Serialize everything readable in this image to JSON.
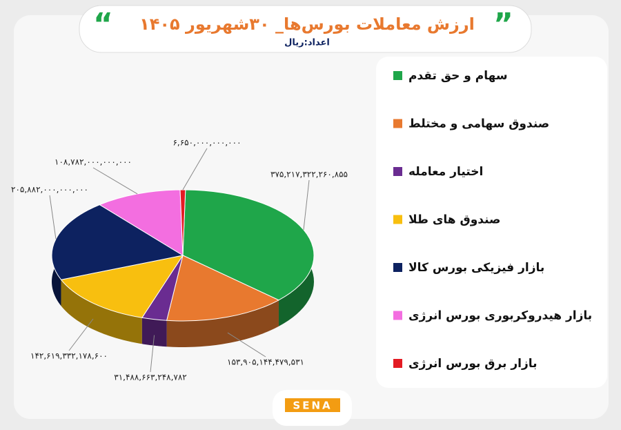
{
  "chart_data": {
    "type": "pie",
    "title": "ارزش معاملات بورس‌ها_ ۳۰شهریور ۱۴۰۵",
    "subtitle": "اعداد:ریال",
    "categories": [
      "سهام و حق تقدم",
      "صندوق سهامی و مختلط",
      "اختیار معامله",
      "صندوق های طلا",
      "بازار فیزیکی بورس کالا",
      "بازار هیدروکربوری بورس انرژی",
      "بازار برق بورس انرژی"
    ],
    "values": [
      375217322260855,
      153905144479531,
      31488663248782,
      142619332178600,
      205882000000000,
      108782000000000,
      6650000000000
    ],
    "value_labels": [
      "۳۷۵,۲۱۷,۳۲۲,۲۶۰,۸۵۵",
      "۱۵۳,۹۰۵,۱۴۴,۴۷۹,۵۳۱",
      "۳۱,۴۸۸,۶۶۳,۲۴۸,۷۸۲",
      "۱۴۲,۶۱۹,۳۳۲,۱۷۸,۶۰۰",
      "۲۰۵,۸۸۲,۰۰۰,۰۰۰,۰۰۰",
      "۱۰۸,۷۸۲,۰۰۰,۰۰۰,۰۰۰",
      "۶,۶۵۰,۰۰۰,۰۰۰,۰۰۰"
    ],
    "colors": [
      "#1fa64a",
      "#e8792f",
      "#6a2c91",
      "#f8bf0f",
      "#0d2260",
      "#f36ee0",
      "#e31b23"
    ],
    "legend": "right"
  },
  "logo": "SENA"
}
